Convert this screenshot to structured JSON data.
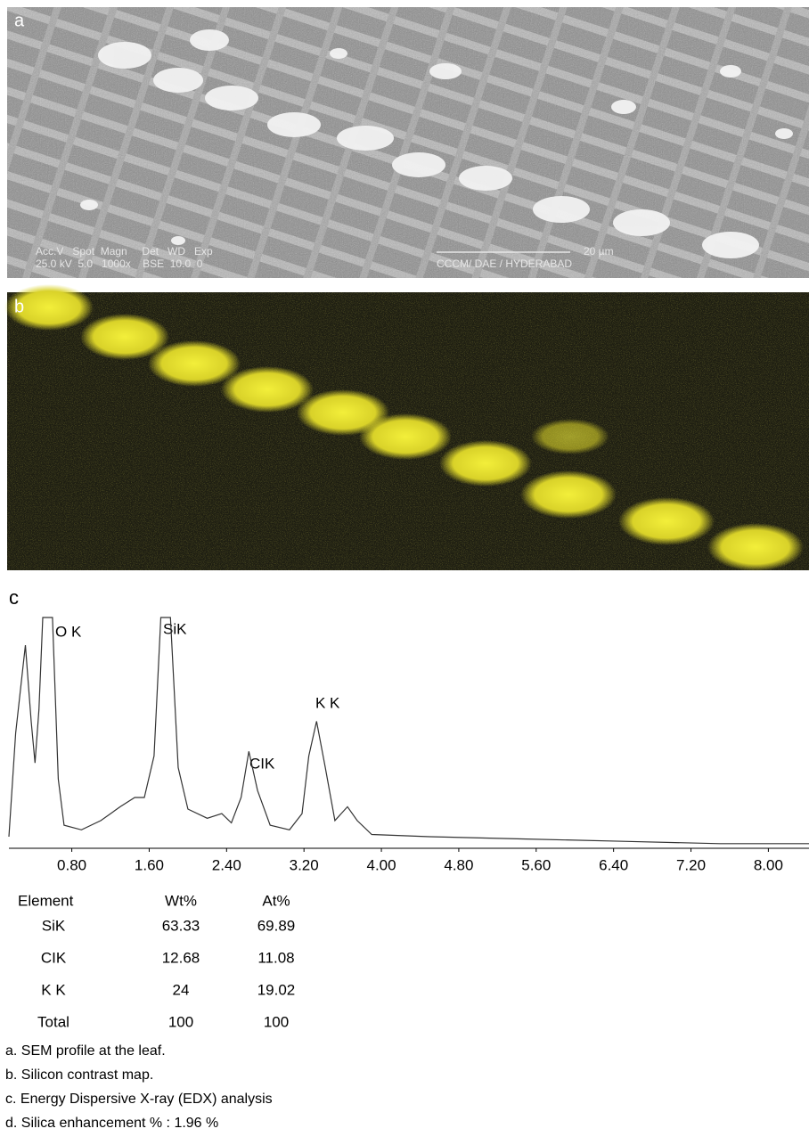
{
  "panels": [
    {
      "label": "a",
      "overlay": {
        "row1": "Acc.V   Spot  Magn     Det   WD   Exp",
        "row2": "25.0 kV  5.0   1000x    BSE  10.0  0",
        "scale": "20 µm",
        "lab": "CCCM/ DAE / HYDERABAD"
      }
    },
    {
      "label": "b"
    }
  ],
  "chart_data": {
    "type": "line",
    "label": "c",
    "peaks": [
      "O K",
      "SiK",
      "CIK",
      "K K"
    ],
    "x": [
      0.15,
      0.22,
      0.32,
      0.38,
      0.42,
      0.46,
      0.5,
      0.6,
      0.66,
      0.72,
      0.9,
      1.1,
      1.3,
      1.45,
      1.55,
      1.65,
      1.72,
      1.82,
      1.9,
      2.0,
      2.2,
      2.35,
      2.45,
      2.55,
      2.63,
      2.72,
      2.85,
      3.05,
      3.18,
      3.25,
      3.33,
      3.42,
      3.52,
      3.65,
      3.75,
      3.9,
      4.5,
      5.5,
      6.5,
      7.5,
      8.42
    ],
    "values": [
      5,
      50,
      88,
      55,
      37,
      60,
      100,
      100,
      30,
      10,
      8,
      12,
      18,
      22,
      22,
      40,
      100,
      100,
      35,
      17,
      13,
      15,
      11,
      22,
      42,
      25,
      10,
      8,
      15,
      40,
      55,
      35,
      12,
      18,
      12,
      6,
      5,
      4,
      3,
      2,
      2
    ],
    "color": "#333333",
    "xlim": [
      0.15,
      8.42
    ],
    "ylim": [
      0,
      100
    ],
    "xticks": [
      {
        "value": 0.8,
        "label": "0.80"
      },
      {
        "value": 1.6,
        "label": "1.60"
      },
      {
        "value": 2.4,
        "label": "2.40"
      },
      {
        "value": 3.2,
        "label": "3.20"
      },
      {
        "value": 4,
        "label": "4.00"
      },
      {
        "value": 4.8,
        "label": "4.80"
      },
      {
        "value": 5.6,
        "label": "5.60"
      },
      {
        "value": 6.4,
        "label": "6.40"
      },
      {
        "value": 7.2,
        "label": "7.20"
      },
      {
        "value": 8,
        "label": "8.00"
      }
    ]
  },
  "table": {
    "header": [
      "Element",
      "Wt%",
      "At%"
    ],
    "rows": [
      [
        "SiK",
        "63.33",
        "69.89"
      ],
      [
        "CIK",
        "12.68",
        "11.08"
      ],
      [
        "K K",
        "24",
        "19.02"
      ],
      [
        "Total",
        "100",
        "100"
      ]
    ]
  },
  "captions": [
    "a. SEM profile at the leaf.",
    "b. Silicon contrast map.",
    "c. Energy Dispersive X-ray (EDX) analysis",
    "d. Silica enhancement % : 1.96 %"
  ]
}
